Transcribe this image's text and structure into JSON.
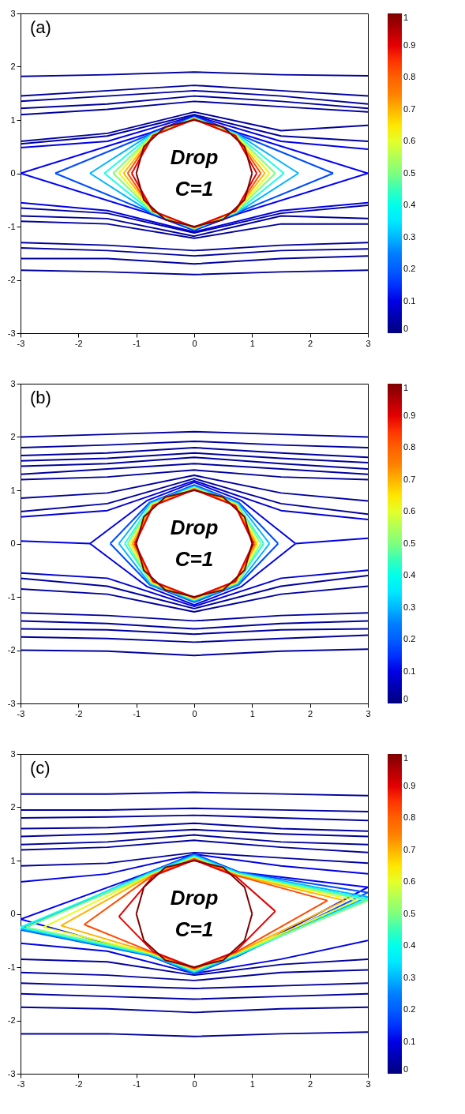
{
  "chart_data": [
    {
      "type": "line",
      "xlim": [
        -3,
        3
      ],
      "ylim": [
        -3,
        3
      ],
      "xticks": [
        -3,
        -2,
        -1,
        0,
        1,
        2,
        3
      ],
      "yticks": [
        -3,
        -2,
        -1,
        0,
        1,
        2,
        3
      ],
      "clim": [
        0,
        1
      ],
      "cticks": [
        0,
        0.1,
        0.2,
        0.3,
        0.4,
        0.5,
        0.6,
        0.7,
        0.8,
        0.9,
        1
      ],
      "annotations": [
        "(a)",
        "Drop",
        "C=1"
      ],
      "series": [
        {
          "color": "#00009e",
          "x": [
            -3,
            -1.5,
            0,
            1.5,
            3
          ],
          "values": [
            1.82,
            1.85,
            1.9,
            1.85,
            1.83
          ]
        },
        {
          "color": "#00009e",
          "x": [
            -3,
            -1.5,
            0,
            1.5,
            3
          ],
          "values": [
            1.45,
            1.55,
            1.65,
            1.55,
            1.45
          ]
        },
        {
          "color": "#00009e",
          "x": [
            -3,
            -1.5,
            0,
            1.5,
            3
          ],
          "values": [
            1.35,
            1.45,
            1.55,
            1.45,
            1.3
          ]
        },
        {
          "color": "#00009e",
          "x": [
            -3,
            -1.5,
            0,
            1.5,
            3
          ],
          "values": [
            1.22,
            1.3,
            1.45,
            1.35,
            1.22
          ]
        },
        {
          "color": "#00009e",
          "x": [
            -3,
            -1.5,
            0,
            1.5,
            3
          ],
          "values": [
            1.1,
            1.2,
            1.35,
            1.25,
            1.15
          ]
        },
        {
          "color": "#00009e",
          "x": [
            -3,
            -1.5,
            0,
            1.5,
            3
          ],
          "values": [
            0.6,
            0.75,
            1.15,
            0.8,
            0.9
          ]
        },
        {
          "color": "#00009e",
          "x": [
            -3,
            -1.5,
            0,
            1.5,
            3
          ],
          "values": [
            0.55,
            0.7,
            1.1,
            0.7,
            0.6
          ]
        },
        {
          "color": "#0000e6",
          "x": [
            -3,
            -1.5,
            0,
            1.5,
            3
          ],
          "values": [
            0.48,
            0.6,
            1.08,
            0.6,
            0.45
          ]
        },
        {
          "color": "#0000e6",
          "x": [
            -3,
            -1.5,
            0,
            1.5,
            3
          ],
          "values": [
            -0.55,
            -0.7,
            -1.1,
            -0.7,
            -0.55
          ]
        },
        {
          "color": "#00009e",
          "x": [
            -3,
            -1.5,
            0,
            1.5,
            3
          ],
          "values": [
            -0.65,
            -0.75,
            -1.12,
            -0.75,
            -0.6
          ]
        },
        {
          "color": "#00009e",
          "x": [
            -3,
            -1.5,
            0,
            1.5,
            3
          ],
          "values": [
            -0.8,
            -0.85,
            -1.18,
            -0.8,
            -0.85
          ]
        },
        {
          "color": "#00009e",
          "x": [
            -3,
            -1.5,
            0,
            1.5,
            3
          ],
          "values": [
            -0.9,
            -0.95,
            -1.22,
            -0.95,
            -0.95
          ]
        },
        {
          "color": "#00009e",
          "x": [
            -3,
            -1.5,
            0,
            1.5,
            3
          ],
          "values": [
            -1.3,
            -1.35,
            -1.45,
            -1.35,
            -1.3
          ]
        },
        {
          "color": "#00009e",
          "x": [
            -3,
            -1.5,
            0,
            1.5,
            3
          ],
          "values": [
            -1.4,
            -1.45,
            -1.55,
            -1.45,
            -1.42
          ]
        },
        {
          "color": "#00009e",
          "x": [
            -3,
            -1.5,
            0,
            1.5,
            3
          ],
          "values": [
            -1.6,
            -1.6,
            -1.7,
            -1.6,
            -1.55
          ]
        },
        {
          "color": "#00009e",
          "x": [
            -3,
            -1.5,
            0,
            1.5,
            3
          ],
          "values": [
            -1.82,
            -1.85,
            -1.9,
            -1.85,
            -1.82
          ]
        },
        {
          "color": "#0000fa",
          "x": [
            -3,
            -0.76,
            0,
            0.76,
            3
          ],
          "values": [
            0,
            0.76,
            1.07,
            0.76,
            0
          ]
        },
        {
          "color": "#0000fa",
          "x": [
            -3,
            -0.76,
            0,
            0.76,
            3
          ],
          "values": [
            0,
            -0.76,
            -1.07,
            -0.76,
            0
          ]
        },
        {
          "color": "#004cff",
          "x": [
            -2.4,
            -0.74,
            0,
            0.74,
            2.4
          ],
          "values": [
            0,
            0.74,
            1.06,
            0.74,
            0
          ]
        },
        {
          "color": "#004cff",
          "x": [
            -2.4,
            -0.74,
            0,
            0.74,
            2.4
          ],
          "values": [
            0,
            -0.74,
            -1.06,
            -0.74,
            0
          ]
        },
        {
          "color": "#00b3ff",
          "x": [
            -1.8,
            -0.74,
            0,
            0.74,
            1.8
          ],
          "values": [
            0,
            0.74,
            1.05,
            0.74,
            0
          ]
        },
        {
          "color": "#00b3ff",
          "x": [
            -1.8,
            -0.74,
            0,
            0.74,
            1.8
          ],
          "values": [
            0,
            -0.74,
            -1.05,
            -0.74,
            0
          ]
        },
        {
          "color": "#1affe6",
          "x": [
            -1.55,
            -0.73,
            0,
            0.73,
            1.55
          ],
          "values": [
            0,
            0.73,
            1.04,
            0.73,
            0
          ]
        },
        {
          "color": "#1affe6",
          "x": [
            -1.55,
            -0.73,
            0,
            0.73,
            1.55
          ],
          "values": [
            0,
            -0.73,
            -1.04,
            -0.73,
            0
          ]
        },
        {
          "color": "#7fff7f",
          "x": [
            -1.4,
            -0.72,
            0,
            0.72,
            1.4
          ],
          "values": [
            0,
            0.72,
            1.03,
            0.72,
            0
          ]
        },
        {
          "color": "#7fff7f",
          "x": [
            -1.4,
            -0.72,
            0,
            0.72,
            1.4
          ],
          "values": [
            0,
            -0.72,
            -1.03,
            -0.72,
            0
          ]
        },
        {
          "color": "#e6ff1a",
          "x": [
            -1.3,
            -0.72,
            0,
            0.72,
            1.3
          ],
          "values": [
            0,
            0.72,
            1.03,
            0.72,
            0
          ]
        },
        {
          "color": "#e6ff1a",
          "x": [
            -1.3,
            -0.72,
            0,
            0.72,
            1.3
          ],
          "values": [
            0,
            -0.72,
            -1.03,
            -0.72,
            0
          ]
        },
        {
          "color": "#ffb300",
          "x": [
            -1.22,
            -0.71,
            0,
            0.71,
            1.22
          ],
          "values": [
            0,
            0.71,
            1.02,
            0.71,
            0
          ]
        },
        {
          "color": "#ffb300",
          "x": [
            -1.22,
            -0.71,
            0,
            0.71,
            1.22
          ],
          "values": [
            0,
            -0.71,
            -1.02,
            -0.71,
            0
          ]
        },
        {
          "color": "#ff4c00",
          "x": [
            -1.15,
            -0.71,
            0,
            0.71,
            1.15
          ],
          "values": [
            0,
            0.71,
            1.02,
            0.71,
            0
          ]
        },
        {
          "color": "#ff4c00",
          "x": [
            -1.15,
            -0.71,
            0,
            0.71,
            1.15
          ],
          "values": [
            0,
            -0.71,
            -1.02,
            -0.71,
            0
          ]
        },
        {
          "color": "#e60000",
          "x": [
            -1.08,
            -0.71,
            0,
            0.71,
            1.08
          ],
          "values": [
            0,
            0.71,
            1.01,
            0.71,
            0
          ]
        },
        {
          "color": "#e60000",
          "x": [
            -1.08,
            -0.71,
            0,
            0.71,
            1.08
          ],
          "values": [
            0,
            -0.71,
            -1.01,
            -0.71,
            0
          ]
        },
        {
          "color": "#7f0000",
          "x": [
            -1,
            -0.87,
            -0.5,
            0,
            0.5,
            0.87,
            1
          ],
          "values": [
            0,
            0.5,
            0.87,
            1,
            0.87,
            0.5,
            0
          ]
        },
        {
          "color": "#7f0000",
          "x": [
            -1,
            -0.87,
            -0.5,
            0,
            0.5,
            0.87,
            1
          ],
          "values": [
            0,
            -0.5,
            -0.87,
            -1,
            -0.87,
            -0.5,
            0
          ]
        }
      ]
    },
    {
      "type": "line",
      "xlim": [
        -3,
        3
      ],
      "ylim": [
        -3,
        3
      ],
      "xticks": [
        -3,
        -2,
        -1,
        0,
        1,
        2,
        3
      ],
      "yticks": [
        -3,
        -2,
        -1,
        0,
        1,
        2,
        3
      ],
      "clim": [
        0,
        1
      ],
      "cticks": [
        0,
        0.1,
        0.2,
        0.3,
        0.4,
        0.5,
        0.6,
        0.7,
        0.8,
        0.9,
        1
      ],
      "annotations": [
        "(b)",
        "Drop",
        "C=1"
      ],
      "series": [
        {
          "color": "#00009e",
          "x": [
            -3,
            -1.5,
            0,
            1.5,
            3
          ],
          "values": [
            2.0,
            2.05,
            2.1,
            2.05,
            2.0
          ]
        },
        {
          "color": "#00009e",
          "x": [
            -3,
            -1.5,
            0,
            1.5,
            3
          ],
          "values": [
            1.8,
            1.85,
            1.92,
            1.85,
            1.8
          ]
        },
        {
          "color": "#00009e",
          "x": [
            -3,
            -1.5,
            0,
            1.5,
            3
          ],
          "values": [
            1.65,
            1.7,
            1.8,
            1.7,
            1.62
          ]
        },
        {
          "color": "#00009e",
          "x": [
            -3,
            -1.5,
            0,
            1.5,
            3
          ],
          "values": [
            1.55,
            1.6,
            1.7,
            1.6,
            1.52
          ]
        },
        {
          "color": "#00009e",
          "x": [
            -3,
            -1.5,
            0,
            1.5,
            3
          ],
          "values": [
            1.45,
            1.5,
            1.62,
            1.5,
            1.4
          ]
        },
        {
          "color": "#00009e",
          "x": [
            -3,
            -1.5,
            0,
            1.5,
            3
          ],
          "values": [
            1.3,
            1.4,
            1.5,
            1.4,
            1.3
          ]
        },
        {
          "color": "#00009e",
          "x": [
            -3,
            -1.5,
            0,
            1.5,
            3
          ],
          "values": [
            1.2,
            1.25,
            1.38,
            1.25,
            1.2
          ]
        },
        {
          "color": "#00009e",
          "x": [
            -3,
            -1.5,
            0,
            1.5,
            3
          ],
          "values": [
            0.85,
            0.95,
            1.28,
            0.95,
            0.8
          ]
        },
        {
          "color": "#00009e",
          "x": [
            -3,
            -1.5,
            0,
            1.5,
            3
          ],
          "values": [
            0.6,
            0.75,
            1.22,
            0.75,
            0.55
          ]
        },
        {
          "color": "#0000d4",
          "x": [
            -3,
            -1.5,
            0,
            1.5,
            3
          ],
          "values": [
            0.5,
            0.62,
            1.18,
            0.62,
            0.45
          ]
        },
        {
          "color": "#0000e6",
          "x": [
            -3,
            -1.8
          ],
          "values": [
            0.05,
            0
          ]
        },
        {
          "color": "#0000e6",
          "x": [
            1.75,
            3
          ],
          "values": [
            0,
            0.1
          ]
        },
        {
          "color": "#0000d4",
          "x": [
            -3,
            -1.5,
            0,
            1.5,
            3
          ],
          "values": [
            -0.55,
            -0.65,
            -1.18,
            -0.65,
            -0.5
          ]
        },
        {
          "color": "#00009e",
          "x": [
            -3,
            -1.5,
            0,
            1.5,
            3
          ],
          "values": [
            -0.65,
            -0.8,
            -1.22,
            -0.8,
            -0.6
          ]
        },
        {
          "color": "#00009e",
          "x": [
            -3,
            -1.5,
            0,
            1.5,
            3
          ],
          "values": [
            -0.85,
            -0.95,
            -1.28,
            -0.95,
            -0.8
          ]
        },
        {
          "color": "#00009e",
          "x": [
            -3,
            -1.5,
            0,
            1.5,
            3
          ],
          "values": [
            -1.3,
            -1.35,
            -1.45,
            -1.35,
            -1.3
          ]
        },
        {
          "color": "#00009e",
          "x": [
            -3,
            -1.5,
            0,
            1.5,
            3
          ],
          "values": [
            -1.45,
            -1.5,
            -1.6,
            -1.5,
            -1.45
          ]
        },
        {
          "color": "#00009e",
          "x": [
            -3,
            -1.5,
            0,
            1.5,
            3
          ],
          "values": [
            -1.6,
            -1.62,
            -1.7,
            -1.62,
            -1.6
          ]
        },
        {
          "color": "#00009e",
          "x": [
            -3,
            -1.5,
            0,
            1.5,
            3
          ],
          "values": [
            -1.75,
            -1.78,
            -1.85,
            -1.78,
            -1.72
          ]
        },
        {
          "color": "#00009e",
          "x": [
            -3,
            -1.5,
            0,
            1.5,
            3
          ],
          "values": [
            -2.0,
            -2.02,
            -2.1,
            -2.02,
            -1.98
          ]
        },
        {
          "color": "#0000e6",
          "x": [
            -1.8,
            -0.81,
            0,
            0.81,
            1.75
          ],
          "values": [
            0,
            0.81,
            1.15,
            0.81,
            0
          ]
        },
        {
          "color": "#0000e6",
          "x": [
            -1.8,
            -0.81,
            0,
            0.81,
            1.75
          ],
          "values": [
            0,
            -0.81,
            -1.15,
            -0.81,
            0
          ]
        },
        {
          "color": "#004cff",
          "x": [
            -1.45,
            -0.77,
            0,
            0.77,
            1.45
          ],
          "values": [
            0,
            0.77,
            1.1,
            0.77,
            0
          ]
        },
        {
          "color": "#004cff",
          "x": [
            -1.45,
            -0.77,
            0,
            0.77,
            1.45
          ],
          "values": [
            0,
            -0.77,
            -1.1,
            -0.77,
            0
          ]
        },
        {
          "color": "#00b3ff",
          "x": [
            -1.3,
            -0.76,
            0,
            0.76,
            1.3
          ],
          "values": [
            0,
            0.76,
            1.08,
            0.76,
            0
          ]
        },
        {
          "color": "#00b3ff",
          "x": [
            -1.3,
            -0.76,
            0,
            0.76,
            1.3
          ],
          "values": [
            0,
            -0.76,
            -1.08,
            -0.76,
            0
          ]
        },
        {
          "color": "#1affe6",
          "x": [
            -1.2,
            -0.74,
            0,
            0.74,
            1.2
          ],
          "values": [
            0,
            0.74,
            1.06,
            0.74,
            0
          ]
        },
        {
          "color": "#1affe6",
          "x": [
            -1.2,
            -0.74,
            0,
            0.74,
            1.2
          ],
          "values": [
            0,
            -0.74,
            -1.06,
            -0.74,
            0
          ]
        },
        {
          "color": "#7fff7f",
          "x": [
            -1.15,
            -0.74,
            0,
            0.74,
            1.15
          ],
          "values": [
            0,
            0.74,
            1.05,
            0.74,
            0
          ]
        },
        {
          "color": "#7fff7f",
          "x": [
            -1.15,
            -0.74,
            0,
            0.74,
            1.15
          ],
          "values": [
            0,
            -0.74,
            -1.05,
            -0.74,
            0
          ]
        },
        {
          "color": "#e6ff1a",
          "x": [
            -1.1,
            -0.73,
            0,
            0.73,
            1.1
          ],
          "values": [
            0,
            0.73,
            1.04,
            0.73,
            0
          ]
        },
        {
          "color": "#e6ff1a",
          "x": [
            -1.1,
            -0.73,
            0,
            0.73,
            1.1
          ],
          "values": [
            0,
            -0.73,
            -1.04,
            -0.73,
            0
          ]
        },
        {
          "color": "#ffb300",
          "x": [
            -1.07,
            -0.72,
            0,
            0.72,
            1.07
          ],
          "values": [
            0,
            0.72,
            1.03,
            0.72,
            0
          ]
        },
        {
          "color": "#ffb300",
          "x": [
            -1.07,
            -0.72,
            0,
            0.72,
            1.07
          ],
          "values": [
            0,
            -0.72,
            -1.03,
            -0.72,
            0
          ]
        },
        {
          "color": "#ff4c00",
          "x": [
            -1.04,
            -0.71,
            0,
            0.71,
            1.04
          ],
          "values": [
            0,
            0.71,
            1.02,
            0.71,
            0
          ]
        },
        {
          "color": "#ff4c00",
          "x": [
            -1.04,
            -0.71,
            0,
            0.71,
            1.04
          ],
          "values": [
            0,
            -0.71,
            -1.02,
            -0.71,
            0
          ]
        },
        {
          "color": "#e60000",
          "x": [
            -1.02,
            -0.71,
            0,
            0.71,
            1.02
          ],
          "values": [
            0,
            0.71,
            1.01,
            0.71,
            0
          ]
        },
        {
          "color": "#e60000",
          "x": [
            -1.02,
            -0.71,
            0,
            0.71,
            1.02
          ],
          "values": [
            0,
            -0.71,
            -1.01,
            -0.71,
            0
          ]
        },
        {
          "color": "#7f0000",
          "x": [
            -1,
            -0.87,
            -0.5,
            0,
            0.5,
            0.87,
            1
          ],
          "values": [
            0,
            0.5,
            0.87,
            1,
            0.87,
            0.5,
            0
          ]
        },
        {
          "color": "#7f0000",
          "x": [
            -1,
            -0.87,
            -0.5,
            0,
            0.5,
            0.87,
            1
          ],
          "values": [
            0,
            -0.5,
            -0.87,
            -1,
            -0.87,
            -0.5,
            0
          ]
        }
      ]
    },
    {
      "type": "line",
      "xlim": [
        -3,
        3
      ],
      "ylim": [
        -3,
        3
      ],
      "xticks": [
        -3,
        -2,
        -1,
        0,
        1,
        2,
        3
      ],
      "yticks": [
        -3,
        -2,
        -1,
        0,
        1,
        2,
        3
      ],
      "clim": [
        0,
        1
      ],
      "cticks": [
        0,
        0.1,
        0.2,
        0.3,
        0.4,
        0.5,
        0.6,
        0.7,
        0.8,
        0.9,
        1
      ],
      "annotations": [
        "(c)",
        "Drop",
        "C=1"
      ],
      "series": [
        {
          "color": "#00009e",
          "x": [
            -3,
            -1.5,
            0,
            1.5,
            3
          ],
          "values": [
            2.25,
            2.25,
            2.28,
            2.25,
            2.22
          ]
        },
        {
          "color": "#00009e",
          "x": [
            -3,
            -1.5,
            0,
            1.5,
            3
          ],
          "values": [
            1.95,
            1.95,
            1.98,
            1.95,
            1.92
          ]
        },
        {
          "color": "#00009e",
          "x": [
            -3,
            -1.5,
            0,
            1.5,
            3
          ],
          "values": [
            1.8,
            1.82,
            1.85,
            1.8,
            1.75
          ]
        },
        {
          "color": "#00009e",
          "x": [
            -3,
            -1.5,
            0,
            1.5,
            3
          ],
          "values": [
            1.6,
            1.62,
            1.7,
            1.6,
            1.55
          ]
        },
        {
          "color": "#00009e",
          "x": [
            -3,
            -1.5,
            0,
            1.5,
            3
          ],
          "values": [
            1.45,
            1.5,
            1.58,
            1.5,
            1.45
          ]
        },
        {
          "color": "#00009e",
          "x": [
            -3,
            -1.5,
            0,
            1.5,
            3
          ],
          "values": [
            1.3,
            1.35,
            1.48,
            1.35,
            1.3
          ]
        },
        {
          "color": "#00009e",
          "x": [
            -3,
            -1.5,
            0,
            1.5,
            3
          ],
          "values": [
            1.2,
            1.25,
            1.38,
            1.25,
            1.15
          ]
        },
        {
          "color": "#00009e",
          "x": [
            -3,
            -1.5,
            0,
            1.5,
            3
          ],
          "values": [
            0.9,
            0.95,
            1.15,
            1.05,
            0.95
          ]
        },
        {
          "color": "#0000e6",
          "x": [
            -3,
            -1.5,
            0,
            1.5,
            3
          ],
          "values": [
            0.6,
            0.75,
            1.12,
            0.9,
            0.75
          ]
        },
        {
          "color": "#0000e6",
          "x": [
            -3,
            -1.5,
            0,
            1.5,
            3
          ],
          "values": [
            -0.55,
            -0.7,
            -1.12,
            -0.85,
            -0.5
          ]
        },
        {
          "color": "#00009e",
          "x": [
            -3,
            -1.5,
            0,
            1.5,
            3
          ],
          "values": [
            -0.85,
            -0.9,
            -1.15,
            -0.95,
            -0.85
          ]
        },
        {
          "color": "#00009e",
          "x": [
            -3,
            -1.5,
            0,
            1.5,
            3
          ],
          "values": [
            -1.1,
            -1.15,
            -1.25,
            -1.1,
            -1.05
          ]
        },
        {
          "color": "#00009e",
          "x": [
            -3,
            -1.5,
            0,
            1.5,
            3
          ],
          "values": [
            -1.3,
            -1.35,
            -1.4,
            -1.35,
            -1.3
          ]
        },
        {
          "color": "#00009e",
          "x": [
            -3,
            -1.5,
            0,
            1.5,
            3
          ],
          "values": [
            -1.5,
            -1.55,
            -1.6,
            -1.55,
            -1.5
          ]
        },
        {
          "color": "#00009e",
          "x": [
            -3,
            -1.5,
            0,
            1.5,
            3
          ],
          "values": [
            -1.75,
            -1.78,
            -1.85,
            -1.78,
            -1.75
          ]
        },
        {
          "color": "#00009e",
          "x": [
            -3,
            -1.5,
            0,
            1.5,
            3
          ],
          "values": [
            -2.25,
            -2.25,
            -2.3,
            -2.25,
            -2.22
          ]
        },
        {
          "color": "#0000fa",
          "x": [
            -3,
            -0.78,
            0,
            0.78,
            3
          ],
          "values": [
            -0.1,
            0.78,
            1.12,
            0.78,
            0.5
          ]
        },
        {
          "color": "#0000fa",
          "x": [
            -3,
            -0.78,
            0,
            0.78,
            3
          ],
          "values": [
            -0.1,
            -0.78,
            -1.12,
            -0.78,
            0.5
          ]
        },
        {
          "color": "#004cff",
          "x": [
            -3,
            -0.78,
            0,
            0.78,
            3
          ],
          "values": [
            -0.3,
            0.78,
            1.12,
            0.78,
            0.4
          ]
        },
        {
          "color": "#004cff",
          "x": [
            -3,
            -0.78,
            0,
            0.78,
            3
          ],
          "values": [
            -0.3,
            -0.78,
            -1.12,
            -0.78,
            0.4
          ]
        },
        {
          "color": "#00b3ff",
          "x": [
            -3,
            -0.77,
            0,
            0.77,
            3
          ],
          "values": [
            -0.28,
            0.77,
            1.1,
            0.77,
            0.32
          ]
        },
        {
          "color": "#00b3ff",
          "x": [
            -3,
            -0.77,
            0,
            0.77,
            3
          ],
          "values": [
            -0.28,
            -0.77,
            -1.1,
            -0.77,
            0.32
          ]
        },
        {
          "color": "#1affe6",
          "x": [
            -3,
            -0.76,
            0,
            0.76,
            3
          ],
          "values": [
            -0.25,
            0.76,
            1.08,
            0.76,
            0.28
          ]
        },
        {
          "color": "#1affe6",
          "x": [
            -3,
            -0.76,
            0,
            0.76,
            3
          ],
          "values": [
            -0.25,
            -0.76,
            -1.08,
            -0.76,
            0.28
          ]
        },
        {
          "color": "#7fff7f",
          "x": [
            -2.9,
            -0.74,
            0,
            0.74,
            3
          ],
          "values": [
            -0.25,
            0.74,
            1.06,
            0.74,
            0.25
          ]
        },
        {
          "color": "#7fff7f",
          "x": [
            -2.9,
            -0.74,
            0,
            0.74,
            3
          ],
          "values": [
            -0.25,
            -0.74,
            -1.06,
            -0.74,
            0.25
          ]
        },
        {
          "color": "#e6ff1a",
          "x": [
            -2.6,
            -0.74,
            0,
            0.74,
            2.8
          ],
          "values": [
            -0.25,
            0.74,
            1.05,
            0.74,
            0.25
          ]
        },
        {
          "color": "#e6ff1a",
          "x": [
            -2.6,
            -0.74,
            0,
            0.74,
            2.8
          ],
          "values": [
            -0.25,
            -0.74,
            -1.05,
            -0.74,
            0.25
          ]
        },
        {
          "color": "#ffb300",
          "x": [
            -2.3,
            -0.73,
            0,
            0.73,
            2.6
          ],
          "values": [
            -0.22,
            0.73,
            1.04,
            0.73,
            0.25
          ]
        },
        {
          "color": "#ffb300",
          "x": [
            -2.3,
            -0.73,
            0,
            0.73,
            2.6
          ],
          "values": [
            -0.22,
            -0.73,
            -1.04,
            -0.73,
            0.25
          ]
        },
        {
          "color": "#ff4c00",
          "x": [
            -1.9,
            -0.72,
            0,
            0.72,
            2.3
          ],
          "values": [
            -0.2,
            0.72,
            1.03,
            0.72,
            0.25
          ]
        },
        {
          "color": "#ff4c00",
          "x": [
            -1.9,
            -0.72,
            0,
            0.72,
            2.3
          ],
          "values": [
            -0.2,
            -0.72,
            -1.03,
            -0.72,
            0.25
          ]
        },
        {
          "color": "#e60000",
          "x": [
            -1.3,
            -0.71,
            0,
            0.71,
            1.4
          ],
          "values": [
            -0.05,
            0.71,
            1.01,
            0.71,
            0.05
          ]
        },
        {
          "color": "#e60000",
          "x": [
            -1.3,
            -0.71,
            0,
            0.71,
            1.4
          ],
          "values": [
            -0.05,
            -0.71,
            -1.01,
            -0.71,
            0.05
          ]
        },
        {
          "color": "#7f0000",
          "x": [
            -1,
            -0.87,
            -0.5,
            0,
            0.5,
            0.87,
            1
          ],
          "values": [
            0,
            0.5,
            0.87,
            1,
            0.87,
            0.5,
            0
          ]
        },
        {
          "color": "#7f0000",
          "x": [
            -1,
            -0.87,
            -0.5,
            0,
            0.5,
            0.87,
            1
          ],
          "values": [
            0,
            -0.5,
            -0.87,
            -1,
            -0.87,
            -0.5,
            0
          ]
        }
      ]
    }
  ]
}
